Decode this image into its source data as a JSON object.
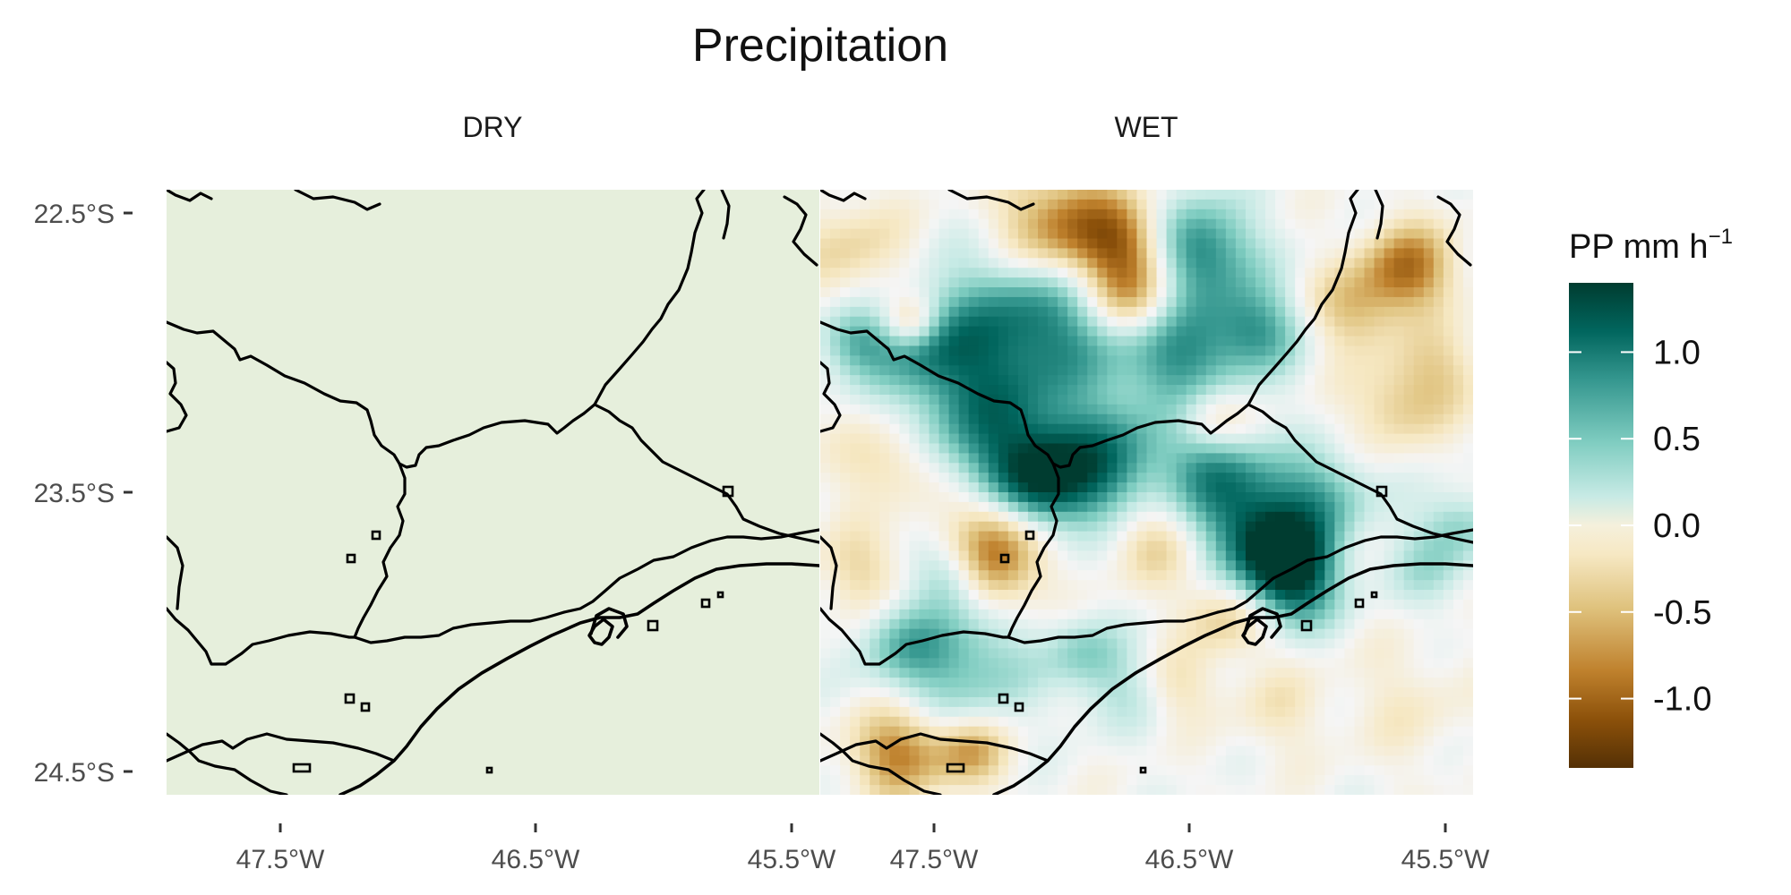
{
  "title": "Precipitation",
  "panels": [
    {
      "label": "DRY"
    },
    {
      "label": "WET"
    }
  ],
  "axes": {
    "y_ticks": [
      "22.5°S",
      "23.5°S",
      "24.5°S"
    ],
    "x_ticks": [
      "47.5°W",
      "46.5°W",
      "45.5°W"
    ]
  },
  "legend": {
    "title_main": "PP mm h",
    "title_sup": "−1",
    "ticks": [
      "1.0",
      "0.5",
      "0.0",
      "-0.5",
      "-1.0"
    ],
    "tick_values": [
      1.0,
      0.5,
      0.0,
      -0.5,
      -1.0
    ],
    "range": [
      -1.4,
      1.4
    ]
  },
  "colors": {
    "scale": [
      "#543005",
      "#8c510a",
      "#bf812d",
      "#dfc27d",
      "#f6e8c3",
      "#f5f5f5",
      "#c7eae5",
      "#80cdc1",
      "#35978f",
      "#01665e",
      "#003c30"
    ],
    "dry_fill": "#e6efdc"
  }
}
